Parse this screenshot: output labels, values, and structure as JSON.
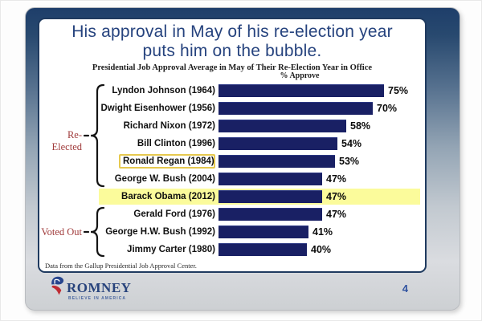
{
  "slide": {
    "title_line1": "His approval in May of his re-election year",
    "title_line2": "puts him on the bubble.",
    "subtitle": "Presidential Job Approval Average in May of Their Re-Election Year in Office",
    "axis_label": "% Approve",
    "footnote": "Data from the Gallup Presidential Job Approval Center.",
    "page_number": "4"
  },
  "logo": {
    "wordmark": "ROMNEY",
    "tagline": "BELIEVE IN AMERICA"
  },
  "chart_data": {
    "type": "bar",
    "orientation": "horizontal",
    "title": "Presidential Job Approval Average in May of Their Re-Election Year in Office",
    "xlabel": "% Approve",
    "xlim": [
      0,
      80
    ],
    "grid": false,
    "bar_color": "#192064",
    "highlight_color": "#fbfb9b",
    "outline_color": "#e6c94f",
    "categories": [
      "Lyndon Johnson (1964)",
      "Dwight Eisenhower (1956)",
      "Richard Nixon (1972)",
      "Bill Clinton (1996)",
      "Ronald Regan (1984)",
      "George W. Bush (2004)",
      "Barack Obama (2012)",
      "Gerald Ford (1976)",
      "George H.W. Bush (1992)",
      "Jimmy Carter (1980)"
    ],
    "values": [
      75,
      70,
      58,
      54,
      53,
      47,
      47,
      47,
      41,
      40
    ],
    "rows": [
      {
        "label": "Lyndon Johnson (1964)",
        "value": 75,
        "pct": "75%"
      },
      {
        "label": "Dwight Eisenhower (1956)",
        "value": 70,
        "pct": "70%"
      },
      {
        "label": "Richard Nixon (1972)",
        "value": 58,
        "pct": "58%"
      },
      {
        "label": "Bill Clinton (1996)",
        "value": 54,
        "pct": "54%"
      },
      {
        "label": "Ronald Regan (1984)",
        "value": 53,
        "pct": "53%",
        "outlined": true
      },
      {
        "label": "George W. Bush (2004)",
        "value": 47,
        "pct": "47%"
      },
      {
        "label": "Barack Obama (2012)",
        "value": 47,
        "pct": "47%",
        "highlighted": true
      },
      {
        "label": "Gerald Ford (1976)",
        "value": 47,
        "pct": "47%"
      },
      {
        "label": "George H.W. Bush (1992)",
        "value": 41,
        "pct": "41%"
      },
      {
        "label": "Jimmy Carter (1980)",
        "value": 40,
        "pct": "40%"
      }
    ],
    "groups": [
      {
        "name": "Re-Elected",
        "row_indices": [
          0,
          1,
          2,
          3,
          4,
          5
        ]
      },
      {
        "name": "Voted Out",
        "row_indices": [
          7,
          8,
          9
        ]
      }
    ]
  }
}
